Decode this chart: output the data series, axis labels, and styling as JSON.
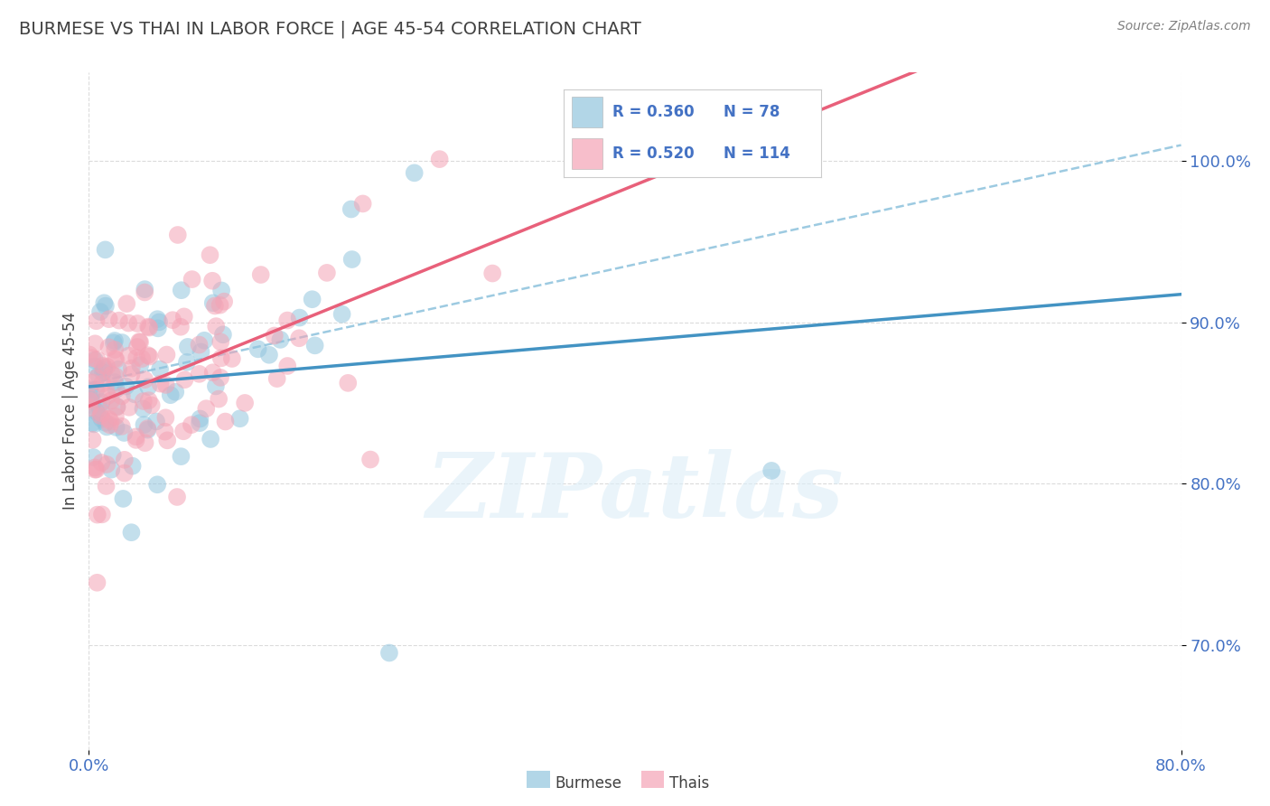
{
  "title": "BURMESE VS THAI IN LABOR FORCE | AGE 45-54 CORRELATION CHART",
  "source_text": "Source: ZipAtlas.com",
  "ylabel": "In Labor Force | Age 45-54",
  "burmese_R": 0.36,
  "burmese_N": 78,
  "thai_R": 0.52,
  "thai_N": 114,
  "burmese_color": "#92c5de",
  "thai_color": "#f4a3b5",
  "burmese_line_color": "#4393c3",
  "thai_line_color": "#e8607a",
  "dashed_line_color": "#92c5de",
  "watermark": "ZIPatlas",
  "background_color": "#ffffff",
  "grid_color": "#cccccc",
  "xlim": [
    0.0,
    0.8
  ],
  "ylim": [
    0.635,
    1.055
  ],
  "y_ticks": [
    0.7,
    0.8,
    0.9,
    1.0
  ],
  "x_ticks": [
    0.0,
    0.8
  ],
  "title_color": "#404040",
  "source_color": "#808080",
  "tick_color": "#4472c4",
  "legend_R1": "R = 0.360",
  "legend_N1": "N = 78",
  "legend_R2": "R = 0.520",
  "legend_N2": "N = 114"
}
